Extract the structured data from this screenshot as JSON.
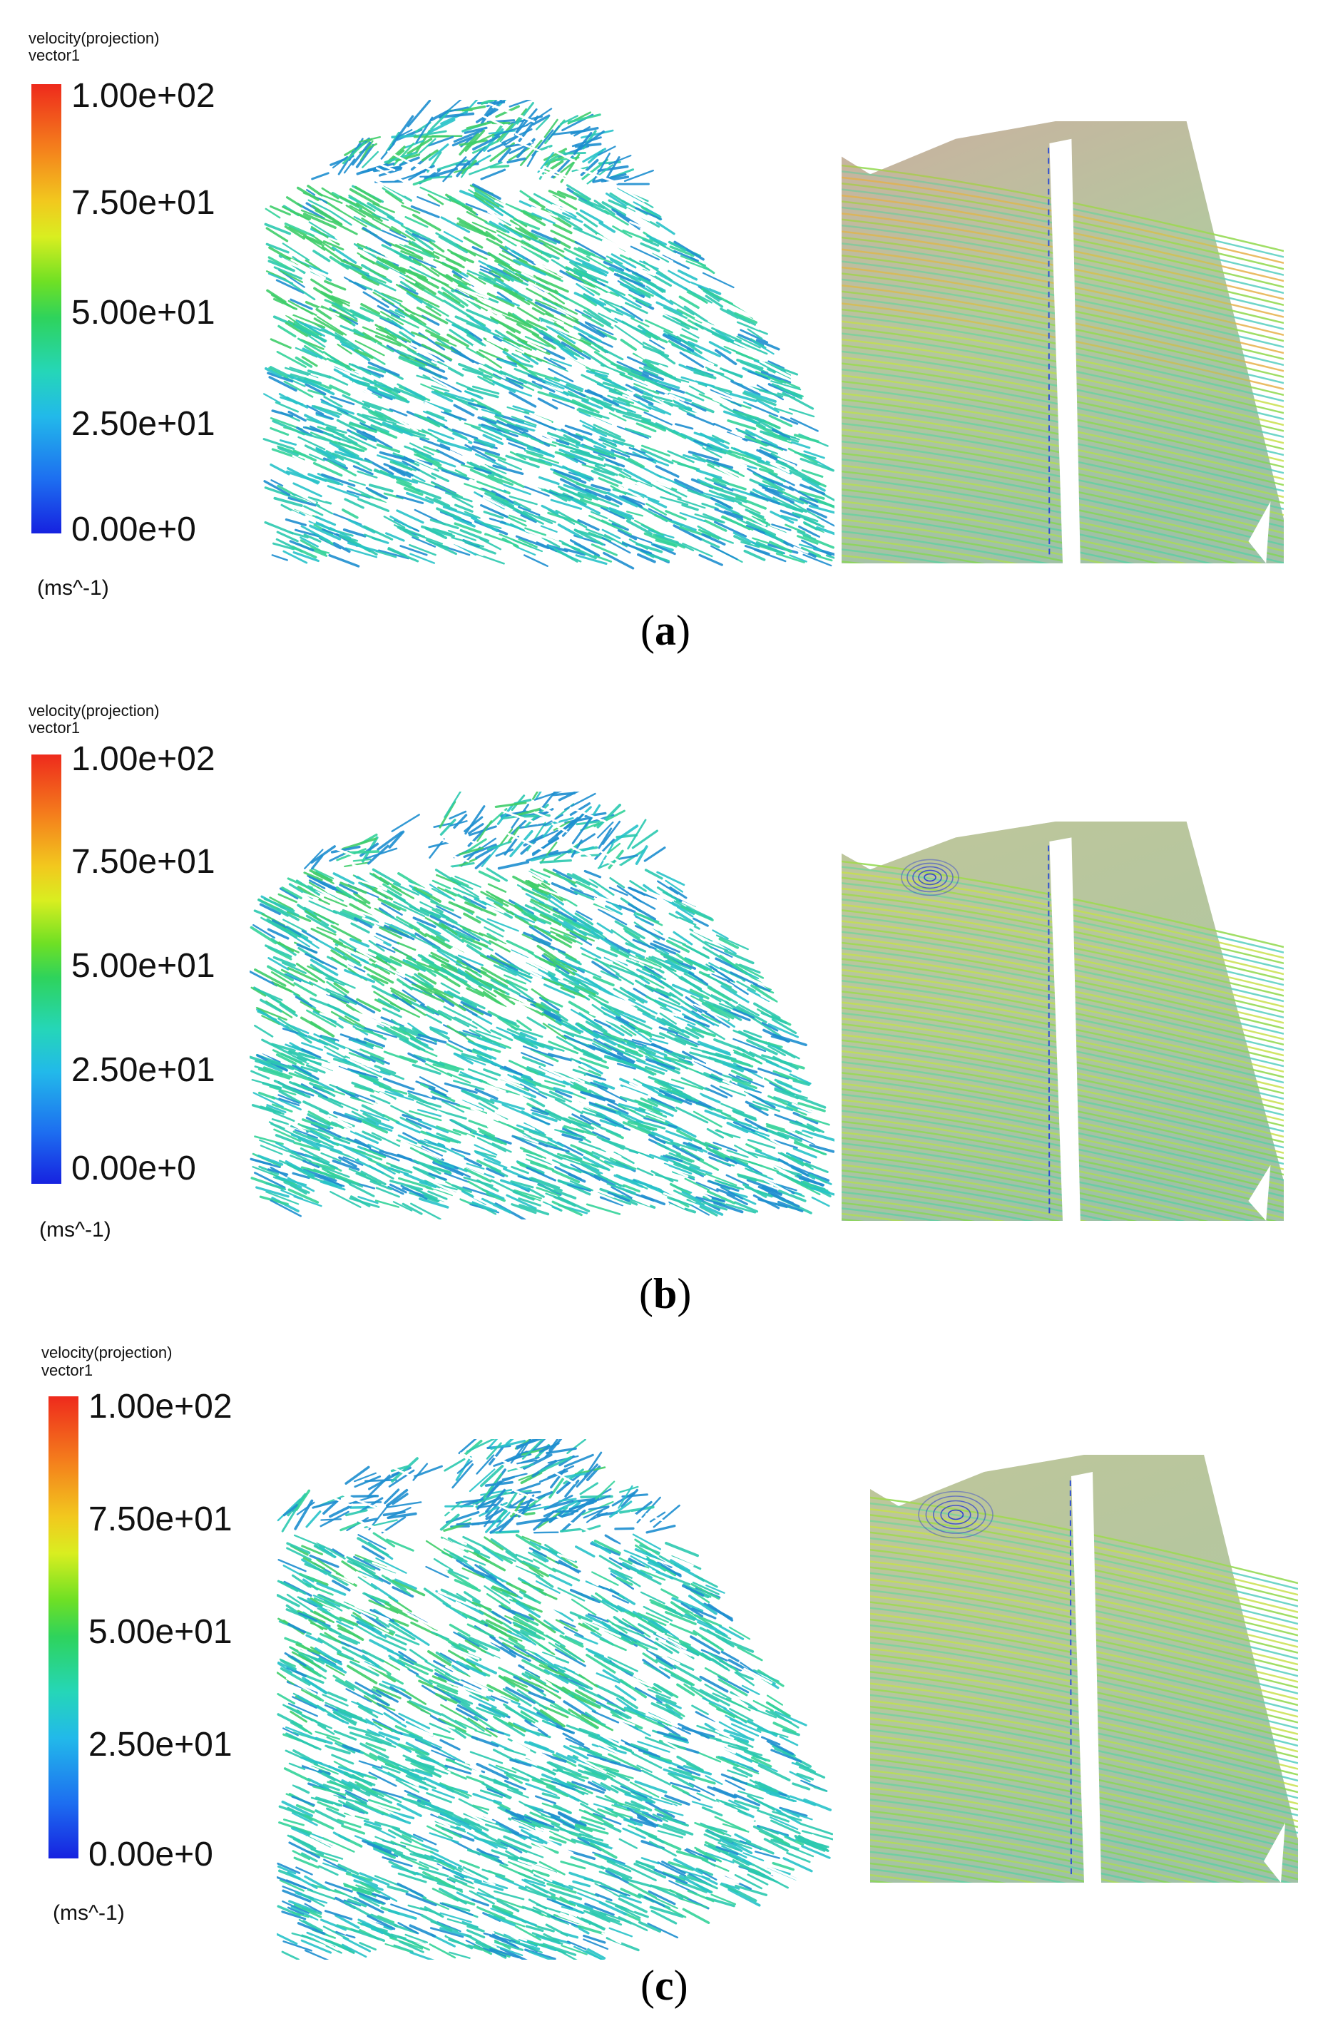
{
  "panels": [
    {
      "legend_title_1": "velocity(projection)",
      "legend_title_2": "vector1",
      "ticks": [
        "1.00e+02",
        "7.50e+01",
        "5.00e+01",
        "2.50e+01",
        "0.00e+0"
      ],
      "unit": "(ms^-1)",
      "caption_open": "(",
      "caption_letter": "a",
      "caption_close": ")"
    },
    {
      "legend_title_1": "velocity(projection)",
      "legend_title_2": "vector1",
      "ticks": [
        "1.00e+02",
        "7.50e+01",
        "5.00e+01",
        "2.50e+01",
        "0.00e+0"
      ],
      "unit": "(ms^-1)",
      "caption_open": "(",
      "caption_letter": "b",
      "caption_close": ")"
    },
    {
      "legend_title_1": "velocity(projection)",
      "legend_title_2": "vector1",
      "ticks": [
        "1.00e+02",
        "7.50e+01",
        "5.00e+01",
        "2.50e+01",
        "0.00e+0"
      ],
      "unit": "(ms^-1)",
      "caption_open": "(",
      "caption_letter": "c",
      "caption_close": ")"
    }
  ],
  "colors": {
    "colormap": [
      "#1622e0",
      "#1d6ef0",
      "#22b9ea",
      "#25d6b8",
      "#2ed35c",
      "#6fe024",
      "#d9ee20",
      "#f2c81e",
      "#f47e1c",
      "#ee2a1c"
    ],
    "vector_main": "#2cc9b0",
    "vector_dark": "#1e8fd0",
    "vector_green": "#3fce6a",
    "streamline_bg": "#b9b9c4",
    "vortex": "#2030d8"
  },
  "icons": [
    "vector-field-plot",
    "streamline-plot"
  ]
}
